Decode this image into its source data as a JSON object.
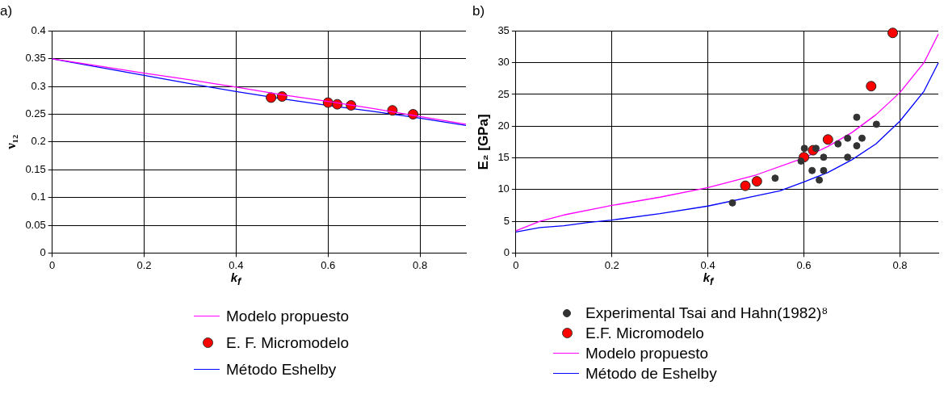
{
  "chart_data": [
    {
      "type": "line",
      "title": "a)",
      "xlabel": "k$_{f}$",
      "ylabel": "ν₁₂",
      "xlim": [
        0,
        0.9
      ],
      "xticks": [
        0,
        0.2,
        0.4,
        0.6,
        0.8
      ],
      "ylim": [
        0,
        0.4
      ],
      "yticks": [
        0,
        0.05,
        0.1,
        0.15,
        0.2,
        0.25,
        0.3,
        0.35,
        0.4
      ],
      "grid": true,
      "legend": "bottom",
      "line_style": "solid",
      "series": [
        {
          "name": "Modelo propuesto",
          "marker": "none",
          "color": "#ff00ff",
          "x": [
            0,
            0.1,
            0.2,
            0.3,
            0.4,
            0.5,
            0.6,
            0.7,
            0.8,
            0.9
          ],
          "values": [
            0.35,
            0.337,
            0.324,
            0.312,
            0.299,
            0.285,
            0.273,
            0.26,
            0.246,
            0.232
          ]
        },
        {
          "name": "E. F. Micromodelo",
          "type": "scatter",
          "marker": "circle",
          "color": "#ff0000",
          "x": [
            0.476,
            0.5,
            0.6,
            0.62,
            0.65,
            0.74,
            0.785
          ],
          "values": [
            0.28,
            0.282,
            0.271,
            0.268,
            0.266,
            0.257,
            0.25
          ]
        },
        {
          "name": "Método Eshelby",
          "marker": "none",
          "color": "#0000ff",
          "x": [
            0,
            0.1,
            0.2,
            0.3,
            0.4,
            0.5,
            0.6,
            0.7,
            0.8,
            0.9
          ],
          "values": [
            0.35,
            0.335,
            0.32,
            0.305,
            0.291,
            0.278,
            0.266,
            0.255,
            0.243,
            0.23
          ]
        }
      ]
    },
    {
      "type": "line",
      "title": "b)",
      "xlabel": "k$_{f}$",
      "ylabel": "E₂ [GPa]",
      "xlim": [
        0,
        0.88
      ],
      "xticks": [
        0,
        0.2,
        0.4,
        0.6,
        0.8
      ],
      "ylim": [
        0,
        35
      ],
      "yticks": [
        0,
        5,
        10,
        15,
        20,
        25,
        30,
        35
      ],
      "grid": true,
      "legend": "bottom",
      "line_style": "solid",
      "series": [
        {
          "name": "Experimental Tsai and Hahn(1982)⁸",
          "type": "scatter",
          "marker": "circle",
          "color": "#333333",
          "x": [
            0.451,
            0.54,
            0.594,
            0.601,
            0.617,
            0.625,
            0.632,
            0.641,
            0.641,
            0.671,
            0.691,
            0.691,
            0.71,
            0.71,
            0.721,
            0.751
          ],
          "values": [
            7.9,
            11.8,
            14.5,
            16.5,
            13,
            16.5,
            11.5,
            15.1,
            13,
            17.2,
            18.1,
            15.1,
            21.4,
            16.9,
            18.1,
            20.3
          ]
        },
        {
          "name": "E.F. Micromodelo",
          "type": "scatter",
          "marker": "circle",
          "color": "#ff0000",
          "x": [
            0.478,
            0.502,
            0.6,
            0.619,
            0.65,
            0.74,
            0.785
          ],
          "values": [
            10.6,
            11.3,
            15.1,
            16.2,
            17.9,
            26.3,
            34.7
          ]
        },
        {
          "name": "Modelo propuesto",
          "marker": "none",
          "color": "#ff00ff",
          "x": [
            0,
            0.05,
            0.1,
            0.2,
            0.3,
            0.4,
            0.5,
            0.6,
            0.65,
            0.7,
            0.75,
            0.8,
            0.85,
            0.88
          ],
          "values": [
            3.5,
            5,
            6,
            7.5,
            8.8,
            10.3,
            12.3,
            15,
            16.8,
            19,
            21.8,
            25.3,
            30,
            34.5
          ]
        },
        {
          "name": "Método de Eshelby",
          "marker": "none",
          "color": "#0000ff",
          "x": [
            0,
            0.05,
            0.1,
            0.15,
            0.2,
            0.3,
            0.4,
            0.5,
            0.55,
            0.6,
            0.65,
            0.7,
            0.75,
            0.8,
            0.85,
            0.88
          ],
          "values": [
            3.3,
            4,
            4.3,
            4.8,
            5.2,
            6.2,
            7.4,
            9,
            9.8,
            11.2,
            12.7,
            14.7,
            17.2,
            20.8,
            25.5,
            30
          ]
        }
      ]
    }
  ]
}
